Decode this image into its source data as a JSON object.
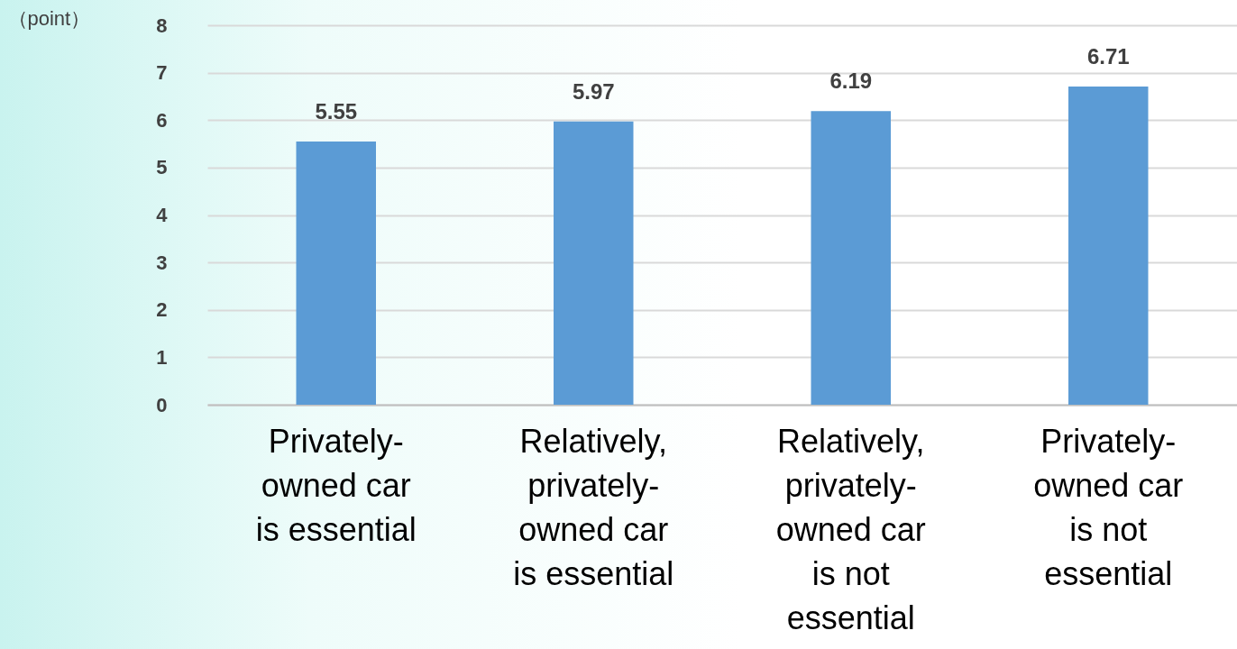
{
  "chart_data": {
    "type": "bar",
    "ylabel": "（point）",
    "categories": [
      "Privately-owned car is essential",
      "Relatively, privately-owned car is essential",
      "Relatively, privately-owned car is not essential",
      "Privately-owned car is not essential"
    ],
    "values": [
      5.55,
      5.97,
      6.19,
      6.71
    ],
    "color": "#5b9bd5",
    "ylim": [
      0,
      8
    ],
    "yticks": [
      0,
      1,
      2,
      3,
      4,
      5,
      6,
      7,
      8
    ],
    "grid": "y",
    "data_labels": true
  }
}
